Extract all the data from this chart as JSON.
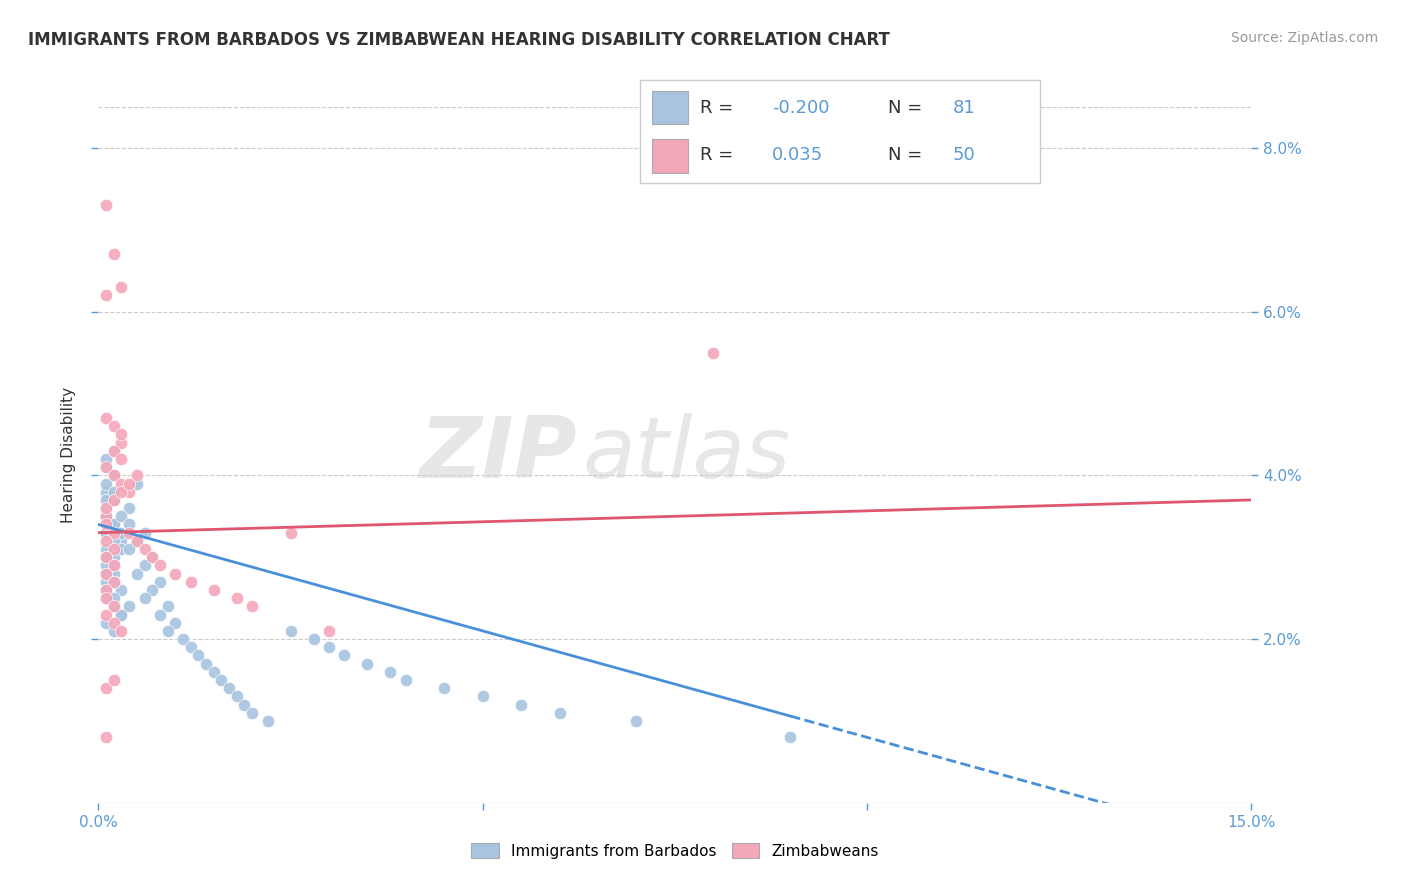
{
  "title": "IMMIGRANTS FROM BARBADOS VS ZIMBABWEAN HEARING DISABILITY CORRELATION CHART",
  "source": "Source: ZipAtlas.com",
  "ylabel": "Hearing Disability",
  "xlim": [
    0.0,
    0.15
  ],
  "ylim": [
    0.0,
    0.085
  ],
  "xticks": [
    0.0,
    0.05,
    0.1,
    0.15
  ],
  "xticklabels": [
    "0.0%",
    "",
    "",
    "15.0%"
  ],
  "yticks": [
    0.02,
    0.04,
    0.06,
    0.08
  ],
  "yticklabels": [
    "2.0%",
    "4.0%",
    "6.0%",
    "8.0%"
  ],
  "legend_labels": [
    "Immigrants from Barbados",
    "Zimbabweans"
  ],
  "blue_color": "#a8c4e0",
  "pink_color": "#f4a7b9",
  "blue_line_color": "#4a90d9",
  "pink_line_color": "#e05570",
  "watermark_zip": "ZIP",
  "watermark_atlas": "atlas",
  "tick_color": "#5b9bd5",
  "grid_color": "#cccccc",
  "blue_scatter_x": [
    0.001,
    0.002,
    0.001,
    0.003,
    0.001,
    0.002,
    0.001,
    0.002,
    0.001,
    0.003,
    0.001,
    0.002,
    0.001,
    0.001,
    0.002,
    0.001,
    0.001,
    0.002,
    0.001,
    0.002,
    0.003,
    0.001,
    0.002,
    0.001,
    0.002,
    0.003,
    0.001,
    0.002,
    0.001,
    0.002,
    0.004,
    0.001,
    0.002,
    0.003,
    0.001,
    0.002,
    0.004,
    0.003,
    0.001,
    0.002,
    0.005,
    0.003,
    0.004,
    0.006,
    0.005,
    0.004,
    0.007,
    0.006,
    0.005,
    0.008,
    0.007,
    0.006,
    0.009,
    0.008,
    0.01,
    0.009,
    0.011,
    0.012,
    0.013,
    0.014,
    0.015,
    0.016,
    0.017,
    0.018,
    0.019,
    0.02,
    0.022,
    0.025,
    0.028,
    0.03,
    0.032,
    0.035,
    0.038,
    0.04,
    0.045,
    0.05,
    0.055,
    0.06,
    0.07,
    0.09
  ],
  "blue_scatter_y": [
    0.035,
    0.034,
    0.033,
    0.032,
    0.031,
    0.03,
    0.029,
    0.028,
    0.027,
    0.026,
    0.036,
    0.037,
    0.038,
    0.039,
    0.04,
    0.041,
    0.042,
    0.043,
    0.025,
    0.024,
    0.023,
    0.022,
    0.021,
    0.033,
    0.032,
    0.031,
    0.03,
    0.029,
    0.028,
    0.027,
    0.036,
    0.035,
    0.034,
    0.033,
    0.026,
    0.025,
    0.024,
    0.023,
    0.037,
    0.038,
    0.039,
    0.035,
    0.034,
    0.033,
    0.032,
    0.031,
    0.03,
    0.029,
    0.028,
    0.027,
    0.026,
    0.025,
    0.024,
    0.023,
    0.022,
    0.021,
    0.02,
    0.019,
    0.018,
    0.017,
    0.016,
    0.015,
    0.014,
    0.013,
    0.012,
    0.011,
    0.01,
    0.021,
    0.02,
    0.019,
    0.018,
    0.017,
    0.016,
    0.015,
    0.014,
    0.013,
    0.012,
    0.011,
    0.01,
    0.008
  ],
  "pink_scatter_x": [
    0.001,
    0.001,
    0.002,
    0.001,
    0.002,
    0.001,
    0.002,
    0.001,
    0.002,
    0.001,
    0.003,
    0.002,
    0.003,
    0.001,
    0.002,
    0.003,
    0.004,
    0.001,
    0.002,
    0.003,
    0.001,
    0.002,
    0.003,
    0.004,
    0.005,
    0.001,
    0.002,
    0.001,
    0.002,
    0.003,
    0.004,
    0.005,
    0.006,
    0.007,
    0.008,
    0.01,
    0.012,
    0.015,
    0.018,
    0.02,
    0.001,
    0.002,
    0.001,
    0.003,
    0.025,
    0.03,
    0.08,
    0.001,
    0.002,
    0.001
  ],
  "pink_scatter_y": [
    0.035,
    0.034,
    0.033,
    0.032,
    0.031,
    0.03,
    0.029,
    0.028,
    0.027,
    0.026,
    0.044,
    0.043,
    0.042,
    0.041,
    0.04,
    0.039,
    0.038,
    0.047,
    0.046,
    0.045,
    0.036,
    0.037,
    0.038,
    0.039,
    0.04,
    0.025,
    0.024,
    0.023,
    0.022,
    0.021,
    0.033,
    0.032,
    0.031,
    0.03,
    0.029,
    0.028,
    0.027,
    0.026,
    0.025,
    0.024,
    0.073,
    0.067,
    0.062,
    0.063,
    0.033,
    0.021,
    0.055,
    0.014,
    0.015,
    0.008
  ],
  "blue_line_y_start": 0.033,
  "blue_line_y_end": 0.008,
  "blue_line_x_end_solid": 0.09,
  "pink_line_y_start": 0.033,
  "pink_line_y_end": 0.037,
  "title_fontsize": 12,
  "axis_label_fontsize": 11,
  "tick_fontsize": 11,
  "legend_fontsize": 12,
  "source_fontsize": 10
}
